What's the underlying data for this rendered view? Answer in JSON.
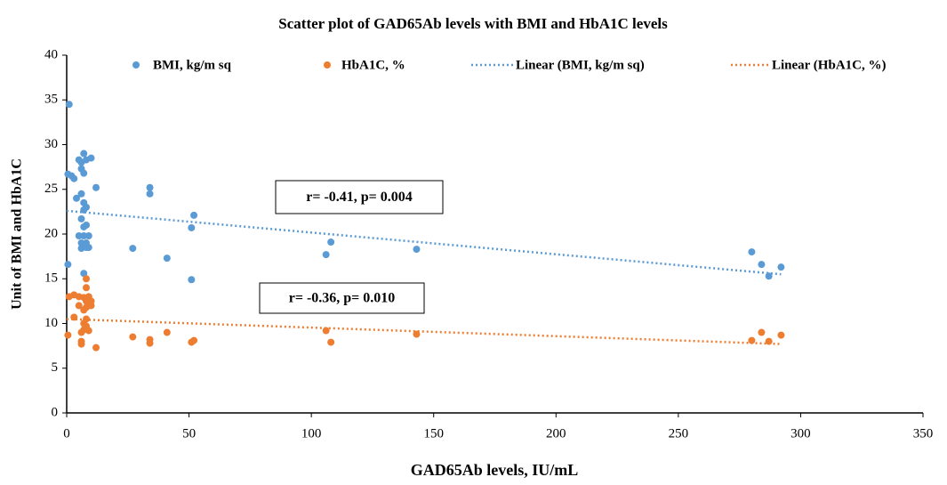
{
  "chart_data": {
    "type": "scatter",
    "title": "Scatter plot of GAD65Ab levels with BMI and HbA1C levels",
    "xlabel": "GAD65Ab levels, IU/mL",
    "ylabel": "Unit of BMI and HbA1C",
    "xlim": [
      0,
      350
    ],
    "ylim": [
      0,
      40
    ],
    "xticks": [
      0,
      50,
      100,
      150,
      200,
      250,
      300,
      350
    ],
    "yticks": [
      0,
      5,
      10,
      15,
      20,
      25,
      30,
      35,
      40
    ],
    "grid": false,
    "series": [
      {
        "name": "BMI, kg/m sq",
        "color": "#5b9bd5",
        "x": [
          1,
          0.5,
          0.5,
          2,
          3,
          4,
          5,
          5,
          6,
          6,
          6,
          6,
          6,
          6,
          7,
          7,
          7,
          7,
          7,
          7,
          7,
          8,
          8,
          8,
          8,
          8,
          9,
          9,
          10,
          12,
          27,
          34,
          34,
          41,
          51,
          51,
          52,
          106,
          108,
          143,
          280,
          284,
          287,
          292
        ],
        "values": [
          34.5,
          26.7,
          16.6,
          26.5,
          26.2,
          24,
          28.3,
          19.8,
          27.3,
          28,
          24.5,
          21.7,
          19,
          18.4,
          29,
          26.8,
          23.5,
          22.7,
          20.8,
          19.8,
          15.6,
          28.3,
          23,
          21,
          19,
          18.5,
          19.8,
          18.5,
          28.5,
          25.2,
          18.4,
          25.2,
          24.5,
          17.3,
          20.7,
          14.9,
          22.1,
          17.7,
          19.1,
          18.3,
          18,
          16.6,
          15.3,
          16.3
        ]
      },
      {
        "name": "HbA1C, %",
        "color": "#ed7d31",
        "x": [
          0.5,
          1,
          3,
          3,
          5,
          5,
          6,
          6,
          6,
          7,
          7,
          7,
          7,
          8,
          8,
          8,
          8,
          8,
          8,
          9,
          9,
          9,
          10,
          10,
          12,
          27,
          34,
          34,
          41,
          51,
          52,
          106,
          108,
          143,
          280,
          284,
          287,
          292
        ],
        "values": [
          8.7,
          13,
          13.2,
          10.7,
          13,
          12,
          9,
          8,
          7.7,
          12.9,
          11.5,
          10,
          9.3,
          15,
          14,
          12.5,
          11.8,
          10.5,
          9.7,
          13,
          12,
          9.2,
          12.5,
          12,
          7.3,
          8.5,
          8.2,
          7.8,
          9,
          7.9,
          8.1,
          9.2,
          7.9,
          8.8,
          8.1,
          9,
          8,
          8.7
        ]
      }
    ],
    "trendlines": [
      {
        "name": "Linear (BMI, kg/m sq)",
        "color": "#5b9bd5",
        "x": [
          0,
          292
        ],
        "values": [
          22.6,
          15.5
        ]
      },
      {
        "name": "Linear (HbA1C, %)",
        "color": "#ed7d31",
        "x": [
          0,
          292
        ],
        "values": [
          10.5,
          7.7
        ]
      }
    ],
    "annotations": [
      "r= -0.41, p= 0.004",
      "r= -0.36, p= 0.010"
    ]
  }
}
